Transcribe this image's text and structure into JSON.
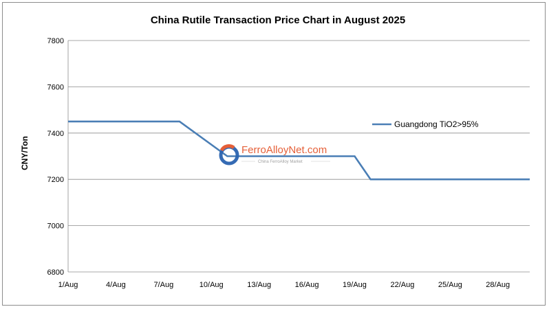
{
  "chart_data": {
    "type": "line",
    "title": "China Rutile Transaction Price Chart in August 2025",
    "xlabel": "",
    "ylabel": "CNY/Ton",
    "ylim": [
      6800,
      7800
    ],
    "yticks": [
      6800,
      7000,
      7200,
      7400,
      7600,
      7800
    ],
    "xticks": [
      "1/Aug",
      "4/Aug",
      "7/Aug",
      "10/Aug",
      "13/Aug",
      "16/Aug",
      "19/Aug",
      "22/Aug",
      "25/Aug",
      "28/Aug"
    ],
    "grid": "horizontal",
    "legend_position": "right",
    "series": [
      {
        "name": "Guangdong TiO2>95%",
        "color": "#4a7eb5",
        "points": [
          {
            "day": 1,
            "value": 7450
          },
          {
            "day": 8,
            "value": 7450
          },
          {
            "day": 11,
            "value": 7300
          },
          {
            "day": 19,
            "value": 7300
          },
          {
            "day": 20,
            "value": 7200
          },
          {
            "day": 30,
            "value": 7200
          }
        ]
      }
    ]
  },
  "watermark": {
    "brand": "FerroAlloyNet.com",
    "tagline": "China FerroAlloy Market"
  }
}
